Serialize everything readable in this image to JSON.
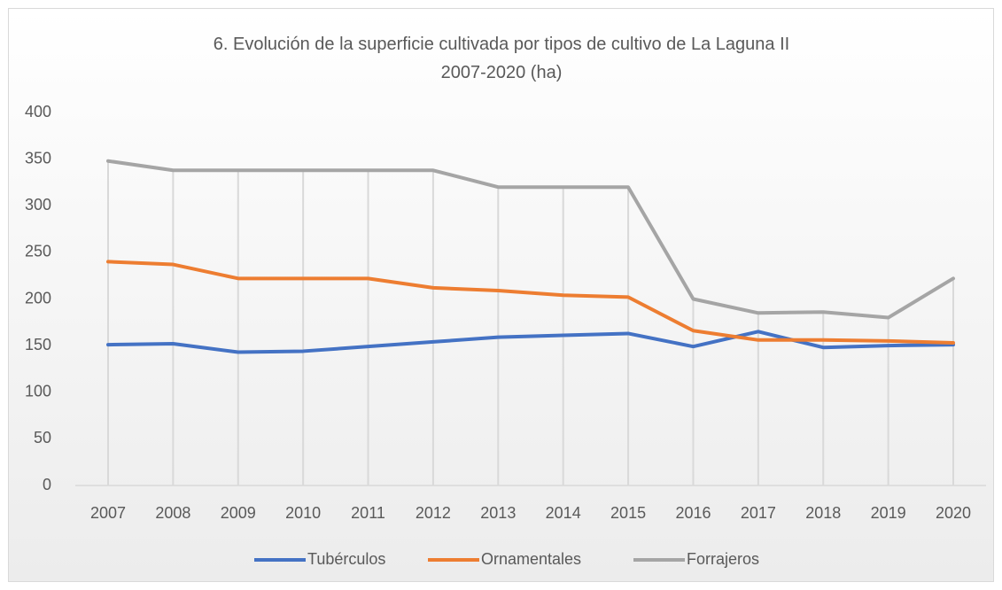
{
  "chart_data": {
    "type": "line",
    "title": "6. Evolución de la superficie cultivada por tipos de cultivo de La Laguna II 2007-2020 (ha)",
    "categories": [
      "2007",
      "2008",
      "2009",
      "2010",
      "2011",
      "2012",
      "2013",
      "2014",
      "2015",
      "2016",
      "2017",
      "2018",
      "2019",
      "2020"
    ],
    "series": [
      {
        "name": "Tubérculos",
        "color": "#4472c4",
        "values": [
          151,
          152,
          143,
          144,
          149,
          154,
          159,
          161,
          163,
          149,
          165,
          148,
          150,
          151
        ]
      },
      {
        "name": "Ornamentales",
        "color": "#ed7d31",
        "values": [
          240,
          237,
          222,
          222,
          222,
          212,
          209,
          204,
          202,
          166,
          156,
          156,
          155,
          153
        ]
      },
      {
        "name": "Forrajeros",
        "color": "#a5a5a5",
        "values": [
          348,
          338,
          338,
          338,
          338,
          338,
          320,
          320,
          320,
          200,
          185,
          186,
          180,
          222
        ]
      }
    ],
    "ylim": [
      0,
      400
    ],
    "yticks": [
      0,
      50,
      100,
      150,
      200,
      250,
      300,
      350,
      400
    ],
    "drop_lines": true,
    "legend": "bottom"
  }
}
